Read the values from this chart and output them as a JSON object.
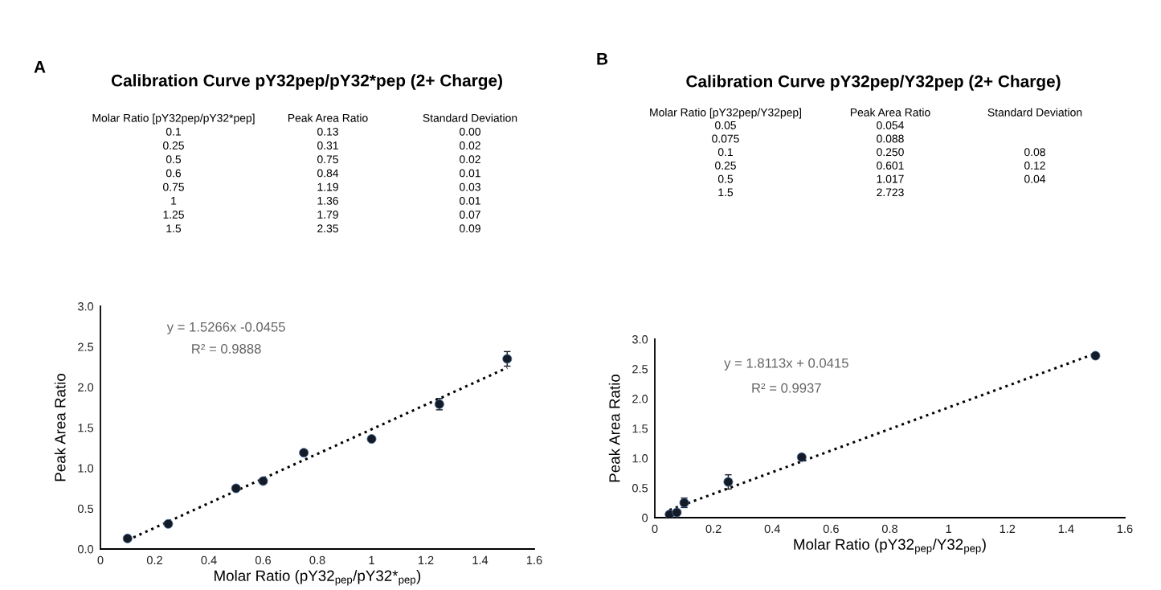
{
  "chart_data": [
    {
      "type": "scatter",
      "title": "Calibration Curve pY32pep/pY32*pep (2+ Charge)",
      "xlabel": "Molar Ratio (pY32$_{pep}$/pY32*$_{pep}$)",
      "ylabel": "Peak Area Ratio",
      "annotations": [
        "A",
        "Molar Ratio [pY32pep/pY32*pep]",
        "Peak Area Ratio",
        "Standard Deviation",
        "y = 1.5266x -0.0455",
        "R² = 0.9888",
        "0.1",
        "0.25",
        "0.5",
        "0.6",
        "0.75",
        "1",
        "1.25",
        "1.5",
        "0.13",
        "0.31",
        "0.75",
        "0.84",
        "1.19",
        "1.36",
        "1.79",
        "2.35",
        "0.00",
        "0.02",
        "0.02",
        "0.01",
        "0.03",
        "0.01",
        "0.07",
        "0.09"
      ],
      "xlim": [
        0,
        1.6
      ],
      "ylim": [
        0,
        3.0
      ],
      "xticks": [
        0,
        0.2,
        0.4,
        0.6,
        0.8,
        1,
        1.2,
        1.4,
        1.6
      ],
      "yticks": [
        {
          "value": 0,
          "label": "0.0"
        },
        0.5,
        {
          "value": 1,
          "label": "1.0"
        },
        1.5,
        {
          "value": 2,
          "label": "2.0"
        },
        2.5,
        {
          "value": 3,
          "label": "3.0"
        }
      ],
      "marker": "circle",
      "grid": false,
      "series": [
        {
          "type": "scatter",
          "color": "#141a26",
          "x": [
            0.1,
            0.25,
            0.5,
            0.6,
            0.75,
            1,
            1.25,
            1.5
          ],
          "values": [
            0.13,
            0.31,
            0.75,
            0.84,
            1.19,
            1.36,
            1.79,
            2.35
          ],
          "errors": [
            0.0,
            0.02,
            0.02,
            0.01,
            0.03,
            0.01,
            0.07,
            0.09
          ]
        },
        {
          "type": "line",
          "color": "#000000",
          "line_style": "dotted",
          "marker": "none",
          "x": [
            0.1,
            1.5
          ],
          "values": [
            0.11,
            2.24
          ]
        }
      ]
    },
    {
      "type": "scatter",
      "title": "Calibration Curve pY32pep/Y32pep (2+ Charge)",
      "xlabel": "Molar Ratio (pY32$_{pep}$/Y32$_{pep}$)",
      "ylabel": "Peak Area Ratio",
      "annotations": [
        "B",
        "Molar Ratio [pY32pep/Y32pep]",
        "Peak Area Ratio",
        "Standard Deviation",
        "y = 1.8113x + 0.0415",
        "R² = 0.9937",
        "0.05",
        "0.075",
        "0.1",
        "0.25",
        "0.5",
        "1.5",
        "0.054",
        "0.088",
        "0.250",
        "0.601",
        "1.017",
        "2.723",
        "0.08",
        "0.12",
        "0.04"
      ],
      "xlim": [
        0,
        1.6
      ],
      "ylim": [
        0,
        3.0
      ],
      "xticks": [
        0,
        0.2,
        0.4,
        0.6,
        0.8,
        1,
        1.2,
        1.4,
        1.6
      ],
      "yticks": [
        0,
        0.5,
        {
          "value": 1,
          "label": "1.0"
        },
        1.5,
        {
          "value": 2,
          "label": "2.0"
        },
        2.5,
        {
          "value": 3,
          "label": "3.0"
        }
      ],
      "marker": "circle",
      "grid": false,
      "series": [
        {
          "type": "scatter",
          "color": "#141a26",
          "x": [
            0.05,
            0.075,
            0.1,
            0.25,
            0.5,
            1.5
          ],
          "values": [
            0.054,
            0.088,
            0.25,
            0.601,
            1.017,
            2.723
          ],
          "errors": [
            null,
            null,
            0.08,
            0.12,
            0.04,
            null
          ]
        },
        {
          "type": "line",
          "color": "#000000",
          "line_style": "dotted",
          "marker": "none",
          "x": [
            0.05,
            1.5
          ],
          "values": [
            0.13,
            2.76
          ]
        }
      ]
    }
  ]
}
